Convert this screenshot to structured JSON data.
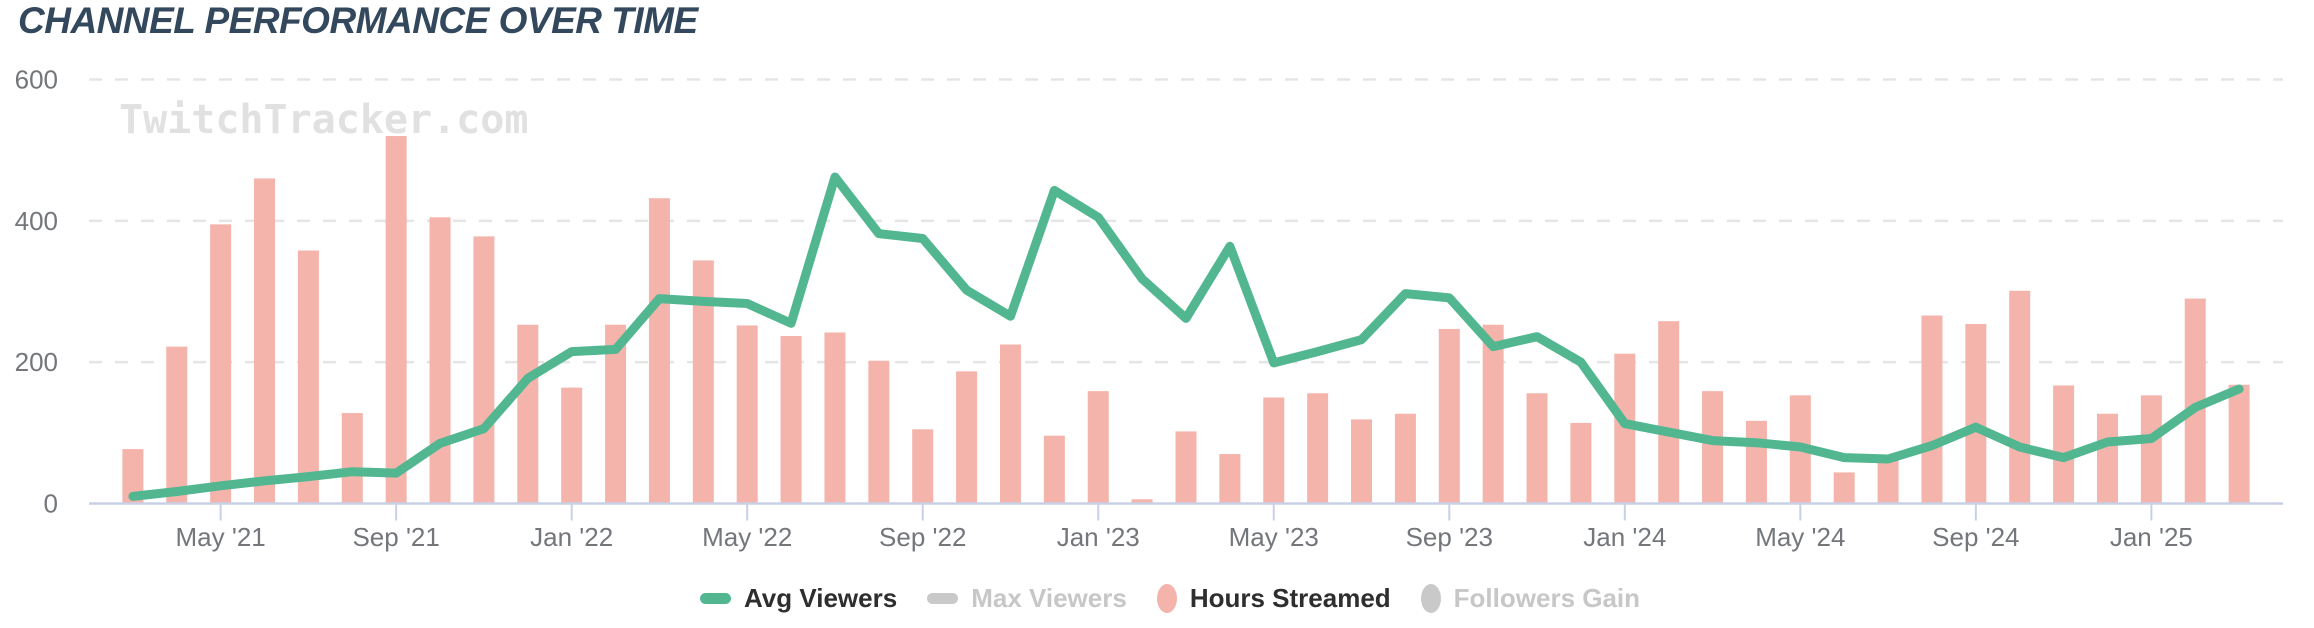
{
  "title": "CHANNEL PERFORMANCE OVER TIME",
  "watermark": "TwitchTracker.com",
  "colors": {
    "title": "#33485c",
    "bar": "#f4b4ab",
    "line": "#52b791",
    "disabled_swatch": "#c9c9c9",
    "axis": "#c9d0e6",
    "grid": "#e5e5e5",
    "tick_label": "#73767b",
    "legend_active_text": "#2e2e2e",
    "legend_disabled_text": "#c7c7c7",
    "watermark_text": "#e1e1e1"
  },
  "legend": {
    "items": [
      {
        "label": "Avg Viewers",
        "shape": "pill",
        "color": "#52b791",
        "active": true
      },
      {
        "label": "Max Viewers",
        "shape": "pill",
        "color": "#c9c9c9",
        "active": false
      },
      {
        "label": "Hours Streamed",
        "shape": "ellipse",
        "color": "#f4b4ab",
        "active": true
      },
      {
        "label": "Followers Gain",
        "shape": "ellipse",
        "color": "#c9c9c9",
        "active": false
      }
    ]
  },
  "chart_data": {
    "type": "bar",
    "title": "CHANNEL PERFORMANCE OVER TIME",
    "xlabel": "",
    "ylabel": "",
    "ylim": [
      0,
      600
    ],
    "y_ticks": [
      0,
      200,
      400,
      600
    ],
    "grid": "dashed-horizontal",
    "legend_position": "bottom",
    "categories": [
      "Mar '21",
      "Apr '21",
      "May '21",
      "Jun '21",
      "Jul '21",
      "Aug '21",
      "Sep '21",
      "Oct '21",
      "Nov '21",
      "Dec '21",
      "Jan '22",
      "Feb '22",
      "Mar '22",
      "Apr '22",
      "May '22",
      "Jun '22",
      "Jul '22",
      "Aug '22",
      "Sep '22",
      "Oct '22",
      "Nov '22",
      "Dec '22",
      "Jan '23",
      "Feb '23",
      "Mar '23",
      "Apr '23",
      "May '23",
      "Jun '23",
      "Jul '23",
      "Aug '23",
      "Sep '23",
      "Oct '23",
      "Nov '23",
      "Dec '23",
      "Jan '24",
      "Feb '24",
      "Mar '24",
      "Apr '24",
      "May '24",
      "Jun '24",
      "Jul '24",
      "Aug '24",
      "Sep '24",
      "Oct '24",
      "Nov '24",
      "Dec '24",
      "Jan '25",
      "Feb '25",
      "Mar '25"
    ],
    "x_tick_labels": [
      "May '21",
      "Sep '21",
      "Jan '22",
      "May '22",
      "Sep '22",
      "Jan '23",
      "May '23",
      "Sep '23",
      "Jan '24",
      "May '24",
      "Sep '24",
      "Jan '25"
    ],
    "x_tick_start_index": 2,
    "x_tick_every": 4,
    "series": [
      {
        "name": "Hours Streamed",
        "type": "bar",
        "color": "#f4b4ab",
        "values": [
          77,
          222,
          395,
          460,
          358,
          128,
          520,
          405,
          378,
          253,
          164,
          253,
          432,
          344,
          252,
          237,
          242,
          202,
          105,
          187,
          225,
          96,
          159,
          6,
          102,
          70,
          150,
          156,
          119,
          127,
          247,
          253,
          156,
          114,
          212,
          258,
          159,
          117,
          153,
          44,
          62,
          266,
          254,
          301,
          167,
          127,
          153,
          290,
          168
        ]
      },
      {
        "name": "Avg Viewers",
        "type": "line",
        "color": "#52b791",
        "values": [
          10,
          17,
          25,
          32,
          38,
          45,
          43,
          85,
          106,
          177,
          215,
          218,
          290,
          286,
          283,
          255,
          462,
          382,
          375,
          302,
          265,
          443,
          405,
          318,
          262,
          364,
          199,
          215,
          232,
          297,
          291,
          222,
          236,
          200,
          113,
          101,
          89,
          86,
          80,
          65,
          63,
          82,
          108,
          80,
          65,
          87,
          92,
          136,
          162
        ]
      },
      {
        "name": "Max Viewers",
        "type": "line",
        "color": "#c9c9c9",
        "hidden": true,
        "values": []
      },
      {
        "name": "Followers Gain",
        "type": "line",
        "color": "#c9c9c9",
        "hidden": true,
        "values": []
      }
    ]
  }
}
